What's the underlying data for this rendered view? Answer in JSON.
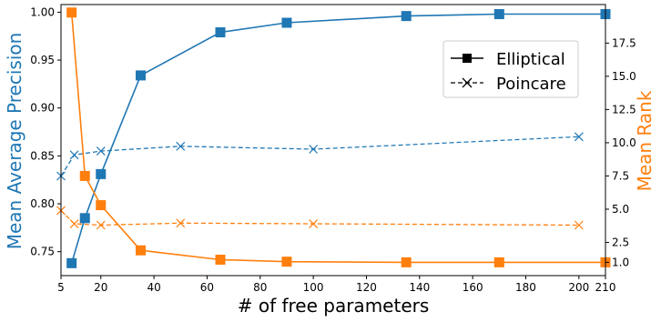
{
  "chart_data": {
    "type": "line",
    "title": "",
    "xlabel": "# of free parameters",
    "ylabel_left": "Mean Average Precision",
    "ylabel_right": "Mean Rank",
    "xlim": [
      5,
      210
    ],
    "ylim_left": [
      0.725,
      1.008
    ],
    "ylim_right": [
      0.0,
      20.4
    ],
    "x_ticks": [
      5,
      20,
      40,
      60,
      80,
      100,
      120,
      140,
      160,
      180,
      200,
      210
    ],
    "y_left_ticks": [
      "0.75",
      "0.80",
      "0.85",
      "0.90",
      "0.95",
      "1.00"
    ],
    "y_right_ticks": [
      "1.0",
      "2.5",
      "5.0",
      "7.5",
      "10.0",
      "12.5",
      "15.0",
      "17.5"
    ],
    "grid": false,
    "legend_position": "upper-right",
    "legend": [
      {
        "label": "Elliptical",
        "linestyle": "solid",
        "marker": "square"
      },
      {
        "label": "Poincare",
        "linestyle": "dashed",
        "marker": "x"
      }
    ],
    "colors": {
      "left_axis": "#1f77b4",
      "right_axis": "#ff7f0e"
    },
    "series": [
      {
        "model": "Elliptical",
        "axis": "left",
        "linestyle": "solid",
        "marker": "square",
        "color": "#1f77b4",
        "x": [
          9,
          14,
          20,
          35,
          65,
          90,
          135,
          170,
          210
        ],
        "values": [
          0.738,
          0.785,
          0.831,
          0.934,
          0.979,
          0.989,
          0.996,
          0.998,
          0.998
        ]
      },
      {
        "model": "Poincare",
        "axis": "left",
        "linestyle": "dashed",
        "marker": "x",
        "color": "#1f77b4",
        "x": [
          5,
          10,
          20,
          50,
          100,
          200
        ],
        "values": [
          0.829,
          0.851,
          0.855,
          0.86,
          0.857,
          0.87
        ]
      },
      {
        "model": "Elliptical",
        "axis": "right",
        "linestyle": "solid",
        "marker": "square",
        "color": "#ff7f0e",
        "x": [
          9,
          14,
          20,
          35,
          65,
          90,
          135,
          170,
          210
        ],
        "values": [
          19.8,
          7.5,
          5.3,
          1.9,
          1.2,
          1.05,
          1.0,
          1.0,
          1.0
        ]
      },
      {
        "model": "Poincare",
        "axis": "right",
        "linestyle": "dashed",
        "marker": "x",
        "color": "#ff7f0e",
        "x": [
          5,
          10,
          20,
          50,
          100,
          200
        ],
        "values": [
          4.9,
          3.9,
          3.8,
          3.95,
          3.9,
          3.8
        ]
      }
    ]
  }
}
